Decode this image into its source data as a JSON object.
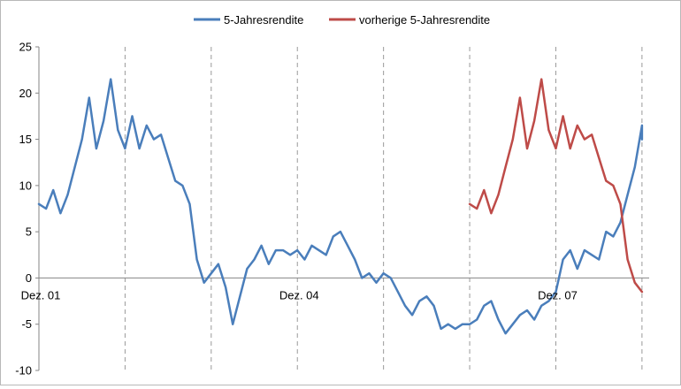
{
  "chart_data": {
    "type": "line",
    "title": "",
    "xlabel": "",
    "ylabel": "",
    "x_range": [
      "2001-12",
      "2009-01"
    ],
    "ylim": [
      -10,
      25
    ],
    "y_ticks": [
      25,
      20,
      15,
      10,
      5,
      0,
      -5,
      -10
    ],
    "x_tick_labels": [
      {
        "label": "Dez. 01",
        "x": "2001-12"
      },
      {
        "label": "Dez. 04",
        "x": "2004-12"
      },
      {
        "label": "Dez. 07",
        "x": "2007-12"
      }
    ],
    "vertical_dashed_lines_at": [
      "2002-12",
      "2003-12",
      "2004-12",
      "2005-12",
      "2006-12",
      "2007-12",
      "2008-12"
    ],
    "grid": "vertical dashed lines only",
    "legend_position": "top",
    "series": [
      {
        "name": "5-Jahresrendite",
        "color": "#4a7ebb",
        "points": [
          [
            "2001-12",
            8
          ],
          [
            "2002-01",
            7.5
          ],
          [
            "2002-02",
            9.5
          ],
          [
            "2002-03",
            7
          ],
          [
            "2002-04",
            9
          ],
          [
            "2002-05",
            12
          ],
          [
            "2002-06",
            15
          ],
          [
            "2002-07",
            19.5
          ],
          [
            "2002-08",
            14
          ],
          [
            "2002-09",
            17
          ],
          [
            "2002-10",
            21.5
          ],
          [
            "2002-11",
            16
          ],
          [
            "2002-12",
            14
          ],
          [
            "2003-01",
            17.5
          ],
          [
            "2003-02",
            14
          ],
          [
            "2003-03",
            16.5
          ],
          [
            "2003-04",
            15
          ],
          [
            "2003-05",
            15.5
          ],
          [
            "2003-06",
            13
          ],
          [
            "2003-07",
            10.5
          ],
          [
            "2003-08",
            10
          ],
          [
            "2003-09",
            8
          ],
          [
            "2003-10",
            2
          ],
          [
            "2003-11",
            -0.5
          ],
          [
            "2003-12",
            0.5
          ],
          [
            "2004-01",
            1.5
          ],
          [
            "2004-02",
            -1
          ],
          [
            "2004-03",
            -5
          ],
          [
            "2004-04",
            -2
          ],
          [
            "2004-05",
            1
          ],
          [
            "2004-06",
            2
          ],
          [
            "2004-07",
            3.5
          ],
          [
            "2004-08",
            1.5
          ],
          [
            "2004-09",
            3
          ],
          [
            "2004-10",
            3
          ],
          [
            "2004-11",
            2.5
          ],
          [
            "2004-12",
            3
          ],
          [
            "2005-01",
            2
          ],
          [
            "2005-02",
            3.5
          ],
          [
            "2005-03",
            3
          ],
          [
            "2005-04",
            2.5
          ],
          [
            "2005-05",
            4.5
          ],
          [
            "2005-06",
            5
          ],
          [
            "2005-07",
            3.5
          ],
          [
            "2005-08",
            2
          ],
          [
            "2005-09",
            0
          ],
          [
            "2005-10",
            0.5
          ],
          [
            "2005-11",
            -0.5
          ],
          [
            "2005-12",
            0.5
          ],
          [
            "2006-01",
            0
          ],
          [
            "2006-02",
            -1.5
          ],
          [
            "2006-03",
            -3
          ],
          [
            "2006-04",
            -4
          ],
          [
            "2006-05",
            -2.5
          ],
          [
            "2006-06",
            -2
          ],
          [
            "2006-07",
            -3
          ],
          [
            "2006-08",
            -5.5
          ],
          [
            "2006-09",
            -5
          ],
          [
            "2006-10",
            -5.5
          ],
          [
            "2006-11",
            -5
          ],
          [
            "2006-12",
            -5
          ],
          [
            "2007-01",
            -4.5
          ],
          [
            "2007-02",
            -3
          ],
          [
            "2007-03",
            -2.5
          ],
          [
            "2007-04",
            -4.5
          ],
          [
            "2007-05",
            -6
          ],
          [
            "2007-06",
            -5
          ],
          [
            "2007-07",
            -4
          ],
          [
            "2007-08",
            -3.5
          ],
          [
            "2007-09",
            -4.5
          ],
          [
            "2007-10",
            -3
          ],
          [
            "2007-11",
            -2.5
          ],
          [
            "2007-12",
            -1.5
          ],
          [
            "2008-01",
            2
          ],
          [
            "2008-02",
            3
          ],
          [
            "2008-03",
            1
          ],
          [
            "2008-04",
            3
          ],
          [
            "2008-05",
            2.5
          ],
          [
            "2008-06",
            2
          ],
          [
            "2008-07",
            5
          ],
          [
            "2008-08",
            4.5
          ],
          [
            "2008-09",
            6
          ],
          [
            "2008-10",
            9
          ],
          [
            "2008-11",
            12
          ],
          [
            "2008-12",
            16.5
          ],
          [
            "2008-12",
            15
          ]
        ]
      },
      {
        "name": "vorherige 5-Jahresrendite",
        "color": "#be4b48",
        "points": [
          [
            "2006-12",
            8
          ],
          [
            "2007-01",
            7.5
          ],
          [
            "2007-02",
            9.5
          ],
          [
            "2007-03",
            7
          ],
          [
            "2007-04",
            9
          ],
          [
            "2007-05",
            12
          ],
          [
            "2007-06",
            15
          ],
          [
            "2007-07",
            19.5
          ],
          [
            "2007-08",
            14
          ],
          [
            "2007-09",
            17
          ],
          [
            "2007-10",
            21.5
          ],
          [
            "2007-11",
            16
          ],
          [
            "2007-12",
            14
          ],
          [
            "2008-01",
            17.5
          ],
          [
            "2008-02",
            14
          ],
          [
            "2008-03",
            16.5
          ],
          [
            "2008-04",
            15
          ],
          [
            "2008-05",
            15.5
          ],
          [
            "2008-06",
            13
          ],
          [
            "2008-07",
            10.5
          ],
          [
            "2008-08",
            10
          ],
          [
            "2008-09",
            8
          ],
          [
            "2008-10",
            2
          ],
          [
            "2008-11",
            -0.5
          ],
          [
            "2008-12",
            -1.5
          ]
        ]
      }
    ]
  }
}
